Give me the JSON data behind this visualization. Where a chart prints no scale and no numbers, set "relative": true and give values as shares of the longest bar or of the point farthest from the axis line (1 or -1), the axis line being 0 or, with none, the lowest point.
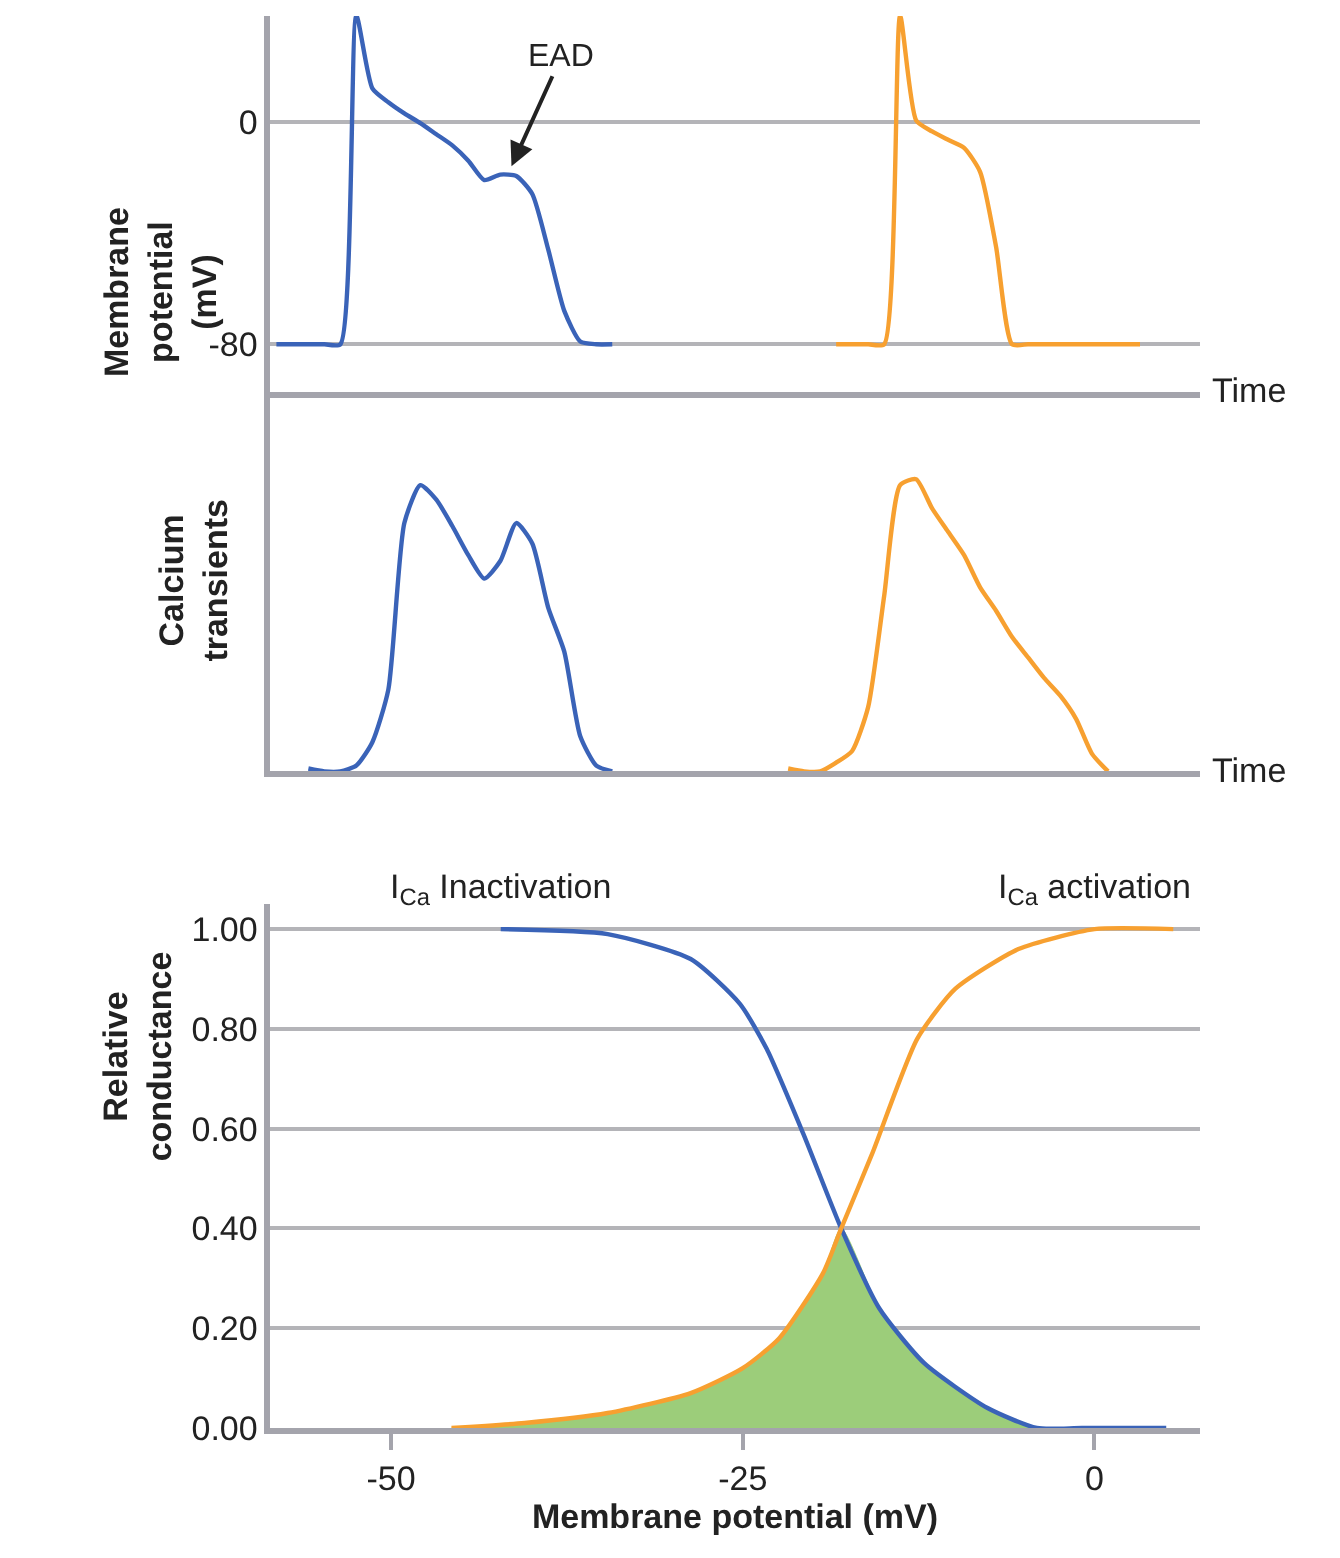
{
  "chart_data": [
    {
      "type": "line",
      "xlabel": "Time",
      "ylabel": "Membrane potential (mV)",
      "ylim": [
        -97,
        38
      ],
      "yticks": [
        0,
        -80
      ],
      "grid": "y",
      "tick_labels": "y",
      "legend": false,
      "marker": "none",
      "line_style": "solid",
      "annotations": [
        "EAD"
      ],
      "categories": [
        null,
        null,
        null,
        null,
        null,
        null,
        null,
        null,
        null,
        null,
        null,
        null,
        null,
        null,
        null,
        null,
        null,
        null,
        null,
        null,
        null,
        null,
        null,
        null,
        null,
        null,
        null,
        null,
        null,
        null,
        null,
        null,
        null,
        null,
        null,
        null,
        null,
        null,
        null,
        null,
        null,
        null,
        null,
        null,
        null,
        null,
        null,
        null,
        null,
        null,
        null,
        null,
        null,
        null,
        null,
        null,
        null,
        null
      ],
      "series": [
        {
          "color": "#3a63b8",
          "values": [
            -80,
            -80,
            -80,
            -80,
            -80,
            38,
            12,
            7,
            3,
            -0.5,
            -4.5,
            -8.5,
            -14,
            -21,
            -19,
            -19.5,
            -26,
            -46,
            -68,
            -79,
            -80,
            -80,
            null,
            null,
            null,
            null,
            null,
            null,
            null,
            null,
            null,
            null,
            null,
            null,
            null,
            null,
            null,
            null,
            null,
            null,
            null,
            null,
            null,
            null,
            null,
            null,
            null,
            null,
            null,
            null,
            null,
            null,
            null,
            null,
            null,
            null,
            null,
            null
          ]
        },
        {
          "color": "#f7a030",
          "values": [
            null,
            null,
            null,
            null,
            null,
            null,
            null,
            null,
            null,
            null,
            null,
            null,
            null,
            null,
            null,
            null,
            null,
            null,
            null,
            null,
            null,
            null,
            null,
            null,
            null,
            null,
            null,
            null,
            null,
            null,
            null,
            null,
            null,
            null,
            null,
            -80,
            -80,
            -80,
            -80,
            38,
            0.5,
            -3.5,
            -6.5,
            -9.4,
            -18,
            -45,
            -80,
            -80,
            -80,
            -80,
            -80,
            -80,
            -80,
            -80,
            -80,
            null,
            null,
            null
          ]
        }
      ]
    },
    {
      "type": "line",
      "xlabel": "Time",
      "ylabel": "Calcium transients",
      "relative": true,
      "grid": false,
      "tick_labels": false,
      "legend": false,
      "marker": "none",
      "line_style": "solid",
      "categories": [
        null,
        null,
        null,
        null,
        null,
        null,
        null,
        null,
        null,
        null,
        null,
        null,
        null,
        null,
        null,
        null,
        null,
        null,
        null,
        null,
        null,
        null,
        null,
        null,
        null,
        null,
        null,
        null,
        null,
        null,
        null,
        null,
        null,
        null,
        null,
        null,
        null,
        null,
        null,
        null,
        null,
        null,
        null,
        null,
        null,
        null,
        null,
        null,
        null,
        null,
        null,
        null,
        null,
        null,
        null,
        null,
        null,
        null
      ],
      "series": [
        {
          "color": "#3a63b8",
          "values": [
            null,
            null,
            0.01,
            0,
            0,
            0.02,
            0.1,
            0.28,
            0.85,
            0.98,
            0.93,
            0.84,
            0.74,
            0.66,
            0.72,
            0.85,
            0.78,
            0.56,
            0.41,
            0.12,
            0.02,
            0,
            null,
            null,
            null,
            null,
            null,
            null,
            null,
            null,
            null,
            null,
            null,
            null,
            null,
            null,
            null,
            null,
            null,
            null,
            null,
            null,
            null,
            null,
            null,
            null,
            null,
            null,
            null,
            null,
            null,
            null,
            null,
            null,
            null,
            null,
            null,
            null
          ]
        },
        {
          "color": "#f7a030",
          "values": [
            null,
            null,
            null,
            null,
            null,
            null,
            null,
            null,
            null,
            null,
            null,
            null,
            null,
            null,
            null,
            null,
            null,
            null,
            null,
            null,
            null,
            null,
            null,
            null,
            null,
            null,
            null,
            null,
            null,
            null,
            null,
            null,
            0.01,
            0,
            0,
            0.03,
            0.07,
            0.22,
            0.6,
            0.98,
            1,
            0.9,
            0.82,
            0.74,
            0.63,
            0.55,
            0.46,
            0.39,
            0.32,
            0.26,
            0.18,
            0.06,
            0,
            null,
            null,
            null,
            null,
            null
          ]
        }
      ]
    },
    {
      "type": "line",
      "xlabel": "Membrane potential (mV)",
      "ylabel": "Relative conductance",
      "xlim": [
        -58.6,
        7.5
      ],
      "xticks": [
        -50,
        -25,
        0
      ],
      "ylim": [
        0,
        1.05
      ],
      "yticks": [
        {
          "value": 0,
          "label": "0.00"
        },
        {
          "value": 0.2,
          "label": "0.20"
        },
        {
          "value": 0.4,
          "label": "0.40"
        },
        {
          "value": 0.6,
          "label": "0.60"
        },
        {
          "value": 0.8,
          "label": "0.80"
        },
        {
          "value": 1,
          "label": "1.00"
        }
      ],
      "grid": "y",
      "legend": false,
      "marker": "none",
      "line_style": "solid",
      "series": [
        {
          "type": "area",
          "color": "#9ccd7a",
          "x": [
            -45.7,
            -40.5,
            -34.6,
            -28.7,
            -25,
            -22.4,
            -19.3,
            -18.0,
            -15.3,
            -12.1,
            -7.6,
            -4.1
          ],
          "values": [
            0,
            0.01,
            0.03,
            0.07,
            0.12,
            0.18,
            0.31,
            0.4,
            0.24,
            0.13,
            0.04,
            0
          ]
        },
        {
          "name": "I$_{Ca}$ Inactivation",
          "color": "#3a63b8",
          "x": [
            -42.2,
            -34.6,
            -28.7,
            -25.2,
            -23.3,
            -20.7,
            -18.0,
            -15.3,
            -12.1,
            -7.6,
            -4.1,
            -0.9,
            5.1
          ],
          "values": [
            1.0,
            0.99,
            0.94,
            0.85,
            0.76,
            0.59,
            0.4,
            0.24,
            0.13,
            0.04,
            0,
            0,
            0
          ]
        },
        {
          "name": "I$_{Ca}$ activation",
          "color": "#f7a030",
          "x": [
            -45.7,
            -40.5,
            -34.6,
            -28.7,
            -25,
            -22.4,
            -19.3,
            -18.0,
            -15.8,
            -12.6,
            -9.9,
            -5.4,
            0,
            5.6
          ],
          "values": [
            0,
            0.01,
            0.03,
            0.07,
            0.12,
            0.18,
            0.31,
            0.4,
            0.55,
            0.78,
            0.88,
            0.96,
            1.0,
            1.0
          ]
        }
      ]
    }
  ]
}
